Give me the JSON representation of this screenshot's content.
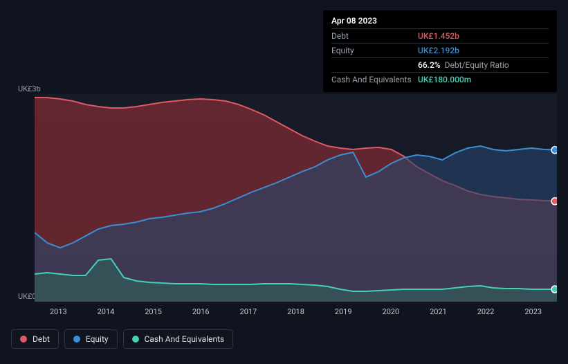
{
  "tooltip": {
    "date": "Apr 08 2023",
    "rows": [
      {
        "label": "Debt",
        "value": "UK£1.452b",
        "color": "#e15a63"
      },
      {
        "label": "Equity",
        "value": "UK£2.192b",
        "color": "#3b8fd6"
      },
      {
        "label": "",
        "value": "66.2%",
        "suffix": "Debt/Equity Ratio",
        "color": "#ffffff"
      },
      {
        "label": "Cash And Equivalents",
        "value": "UK£180.000m",
        "color": "#45d1b6"
      }
    ]
  },
  "chart": {
    "type": "area",
    "background_color": "#171b28",
    "y_axis": {
      "top_label": "UK£3b",
      "bottom_label": "UK£0",
      "min": 0,
      "max": 3,
      "label_color": "#9aa0aa",
      "label_fontsize": 11
    },
    "x_axis": {
      "ticks": [
        "2013",
        "2014",
        "2015",
        "2016",
        "2017",
        "2018",
        "2019",
        "2020",
        "2021",
        "2022",
        "2023"
      ],
      "label_color": "#c5c9d0",
      "label_fontsize": 11
    },
    "series": [
      {
        "name": "Debt",
        "stroke": "#e15a63",
        "fill": "rgba(160,50,55,0.55)",
        "stroke_width": 2,
        "values": [
          2.95,
          2.95,
          2.93,
          2.9,
          2.85,
          2.82,
          2.8,
          2.8,
          2.82,
          2.85,
          2.88,
          2.9,
          2.92,
          2.93,
          2.92,
          2.9,
          2.85,
          2.78,
          2.7,
          2.6,
          2.5,
          2.4,
          2.32,
          2.25,
          2.22,
          2.2,
          2.22,
          2.23,
          2.2,
          2.1,
          1.95,
          1.85,
          1.75,
          1.68,
          1.6,
          1.55,
          1.52,
          1.5,
          1.48,
          1.47,
          1.46,
          1.452
        ]
      },
      {
        "name": "Equity",
        "stroke": "#3b8fd6",
        "fill": "rgba(40,70,110,0.60)",
        "stroke_width": 2,
        "values": [
          1.0,
          0.85,
          0.78,
          0.85,
          0.95,
          1.05,
          1.1,
          1.12,
          1.15,
          1.2,
          1.22,
          1.25,
          1.28,
          1.3,
          1.35,
          1.42,
          1.5,
          1.58,
          1.65,
          1.72,
          1.8,
          1.88,
          1.95,
          2.05,
          2.12,
          2.16,
          1.8,
          1.88,
          2.0,
          2.08,
          2.12,
          2.1,
          2.05,
          2.15,
          2.22,
          2.25,
          2.2,
          2.18,
          2.2,
          2.22,
          2.2,
          2.192
        ]
      },
      {
        "name": "Cash And Equivalents",
        "stroke": "#45d1b6",
        "fill": "rgba(45,100,90,0.55)",
        "stroke_width": 2,
        "values": [
          0.4,
          0.42,
          0.4,
          0.38,
          0.38,
          0.6,
          0.62,
          0.35,
          0.3,
          0.28,
          0.27,
          0.26,
          0.26,
          0.26,
          0.25,
          0.25,
          0.25,
          0.25,
          0.26,
          0.26,
          0.26,
          0.25,
          0.24,
          0.22,
          0.18,
          0.15,
          0.15,
          0.16,
          0.17,
          0.18,
          0.18,
          0.18,
          0.18,
          0.2,
          0.22,
          0.23,
          0.2,
          0.19,
          0.19,
          0.18,
          0.18,
          0.18
        ]
      }
    ],
    "end_markers": [
      {
        "color_fill": "#3b8fd6",
        "color_stroke": "#ffffff",
        "series_index": 1
      },
      {
        "color_fill": "#e15a63",
        "color_stroke": "#ffffff",
        "series_index": 0
      },
      {
        "color_fill": "#45d1b6",
        "color_stroke": "#ffffff",
        "series_index": 2
      }
    ]
  },
  "legend": [
    {
      "label": "Debt",
      "color": "#e15a63"
    },
    {
      "label": "Equity",
      "color": "#3b8fd6"
    },
    {
      "label": "Cash And Equivalents",
      "color": "#45d1b6"
    }
  ]
}
